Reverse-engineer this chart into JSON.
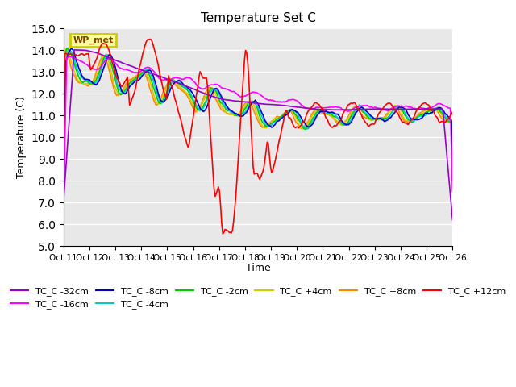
{
  "title": "Temperature Set C",
  "xlabel": "Time",
  "ylabel": "Temperature (C)",
  "ylim": [
    5.0,
    15.0
  ],
  "yticks": [
    5.0,
    6.0,
    7.0,
    8.0,
    9.0,
    10.0,
    11.0,
    12.0,
    13.0,
    14.0,
    15.0
  ],
  "xtick_labels": [
    "Oct 11",
    "Oct 12",
    "Oct 13",
    "Oct 14",
    "Oct 15",
    "Oct 16",
    "Oct 17",
    "Oct 18",
    "Oct 19",
    "Oct 20",
    "Oct 21",
    "Oct 22",
    "Oct 23",
    "Oct 24",
    "Oct 25",
    "Oct 26"
  ],
  "series_colors": {
    "TC_C -32cm": "#9900CC",
    "TC_C -16cm": "#FF00FF",
    "TC_C -8cm": "#0000CC",
    "TC_C -4cm": "#00CCCC",
    "TC_C -2cm": "#00CC00",
    "TC_C +4cm": "#CCCC00",
    "TC_C +8cm": "#FF8800",
    "TC_C +12cm": "#FF0000"
  },
  "plot_bg_color": "#E8E8E8",
  "n_points": 360,
  "days": 15
}
